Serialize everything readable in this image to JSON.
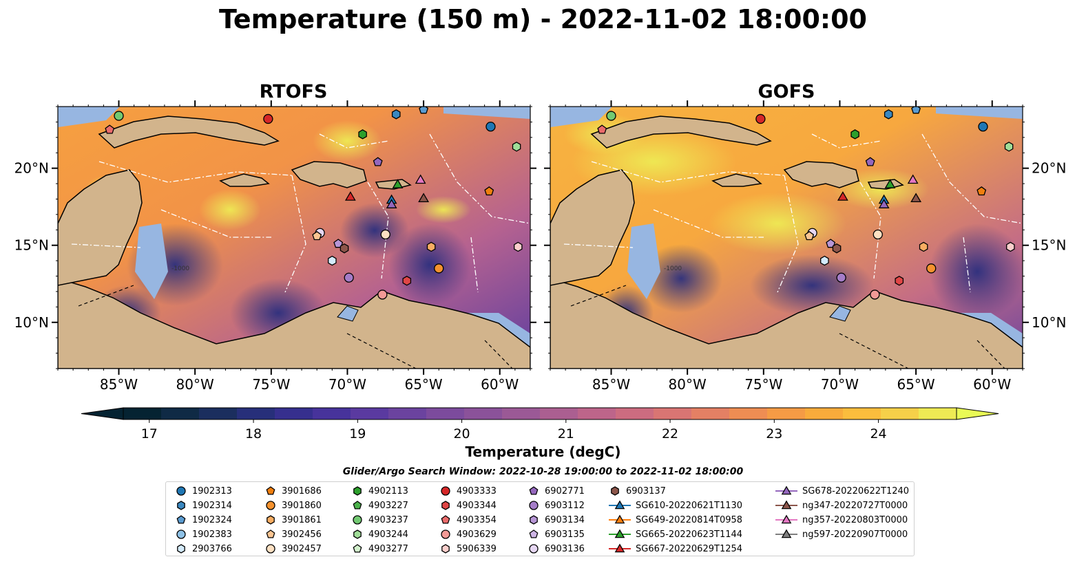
{
  "title": "Temperature (150 m) - 2022-11-02 18:00:00",
  "panels": [
    {
      "title": "RTOFS",
      "lat_labels_side": "left"
    },
    {
      "title": "GOFS",
      "lat_labels_side": "right"
    }
  ],
  "map": {
    "lon_range": [
      -89,
      -58
    ],
    "lat_range": [
      7,
      24
    ],
    "lon_ticks": [
      {
        "value": -85,
        "label": "85°W"
      },
      {
        "value": -80,
        "label": "80°W"
      },
      {
        "value": -75,
        "label": "75°W"
      },
      {
        "value": -70,
        "label": "70°W"
      },
      {
        "value": -65,
        "label": "65°W"
      },
      {
        "value": -60,
        "label": "60°W"
      }
    ],
    "lat_ticks": [
      {
        "value": 20,
        "label": "20°N"
      },
      {
        "value": 15,
        "label": "15°N"
      },
      {
        "value": 10,
        "label": "10°N"
      }
    ],
    "bathymetry_label": "-1000",
    "colors": {
      "land": "#d2b48c",
      "shelf": "#97b6e1",
      "coast": "#000000",
      "eez": "#ffffff"
    }
  },
  "colorbar": {
    "label": "Temperature (degC)",
    "ticks": [
      "17",
      "18",
      "19",
      "20",
      "21",
      "22",
      "23",
      "24"
    ],
    "min": 16.75,
    "max": 24.75,
    "extend": "both",
    "colors": [
      "#052332",
      "#0f2a45",
      "#1b2e5e",
      "#272f7a",
      "#362f8e",
      "#47339b",
      "#5a3aa0",
      "#6b439f",
      "#7c4b9d",
      "#8b529a",
      "#9b5996",
      "#ab5f91",
      "#bd658a",
      "#cc6c80",
      "#d97573",
      "#e48064",
      "#ee8d53",
      "#f59b45",
      "#f9ab3b",
      "#fbbd3d",
      "#f6d049",
      "#eeea54"
    ],
    "extend_low_color": "#052332",
    "extend_high_color": "#e9fa56"
  },
  "search_window": "Glider/Argo Search Window: 2022-10-28 19:00:00 to 2022-11-02 18:00:00",
  "legend": {
    "columns": [
      [
        {
          "label": "1902313",
          "marker": "circle",
          "color": "#1f77b4"
        },
        {
          "label": "1902314",
          "marker": "hexagon",
          "color": "#3a88c0"
        },
        {
          "label": "1902324",
          "marker": "pentagon",
          "color": "#5a9bd0"
        },
        {
          "label": "1902383",
          "marker": "circle",
          "color": "#8ec1e6"
        },
        {
          "label": "2903766",
          "marker": "hexagon",
          "color": "#d4ebfb"
        }
      ],
      [
        {
          "label": "3901686",
          "marker": "pentagon",
          "color": "#f07f0e"
        },
        {
          "label": "3901860",
          "marker": "circle",
          "color": "#f5922e"
        },
        {
          "label": "3901861",
          "marker": "hexagon",
          "color": "#f9ad62"
        },
        {
          "label": "3902456",
          "marker": "pentagon",
          "color": "#fbc592"
        },
        {
          "label": "3902457",
          "marker": "circle",
          "color": "#fde0c2"
        }
      ],
      [
        {
          "label": "4902113",
          "marker": "hexagon",
          "color": "#2ca02c"
        },
        {
          "label": "4903227",
          "marker": "pentagon",
          "color": "#4bb24b"
        },
        {
          "label": "4903237",
          "marker": "circle",
          "color": "#72c972"
        },
        {
          "label": "4903244",
          "marker": "hexagon",
          "color": "#a0dd98"
        },
        {
          "label": "4903277",
          "marker": "pentagon",
          "color": "#d3f2cd"
        }
      ],
      [
        {
          "label": "4903333",
          "marker": "circle",
          "color": "#d62728"
        },
        {
          "label": "4903344",
          "marker": "hexagon",
          "color": "#e04646"
        },
        {
          "label": "4903354",
          "marker": "pentagon",
          "color": "#ea6b6b"
        },
        {
          "label": "4903629",
          "marker": "circle",
          "color": "#f39a96"
        },
        {
          "label": "5906339",
          "marker": "hexagon",
          "color": "#fbcfcc"
        }
      ],
      [
        {
          "label": "6902771",
          "marker": "pentagon",
          "color": "#9467bd"
        },
        {
          "label": "6903112",
          "marker": "circle",
          "color": "#a57dc8"
        },
        {
          "label": "6903134",
          "marker": "hexagon",
          "color": "#b796d6"
        },
        {
          "label": "6903135",
          "marker": "pentagon",
          "color": "#cdb4e4"
        },
        {
          "label": "6903136",
          "marker": "circle",
          "color": "#e6d7f3"
        }
      ],
      [
        {
          "label": "6903137",
          "marker": "hexagon",
          "color": "#8c564b",
          "line": false
        },
        {
          "label": "SG610-20220621T1130",
          "marker": "triangle",
          "color": "#1f77b4",
          "line": true
        },
        {
          "label": "SG649-20220814T0958",
          "marker": "triangle",
          "color": "#ff7f0e",
          "line": true
        },
        {
          "label": "SG665-20220623T1144",
          "marker": "triangle",
          "color": "#2ca02c",
          "line": true
        },
        {
          "label": "SG667-20220629T1254",
          "marker": "triangle",
          "color": "#d62728",
          "line": true
        }
      ],
      [
        {
          "label": "SG678-20220622T1240",
          "marker": "triangle",
          "color": "#9467bd",
          "line": true
        },
        {
          "label": "ng347-20220727T0000",
          "marker": "triangle",
          "color": "#8c564b",
          "line": true
        },
        {
          "label": "ng357-20220803T0000",
          "marker": "triangle",
          "color": "#e377c2",
          "line": true
        },
        {
          "label": "ng597-20220907T0000",
          "marker": "triangle",
          "color": "#7f7f7f",
          "line": true
        }
      ]
    ]
  },
  "markers": [
    {
      "lon": -85.0,
      "lat": 23.4,
      "shape": "circle",
      "color": "#72c972"
    },
    {
      "lon": -85.6,
      "lat": 22.5,
      "shape": "pentagon",
      "color": "#ea6b6b"
    },
    {
      "lon": -75.2,
      "lat": 23.2,
      "shape": "circle",
      "color": "#d62728"
    },
    {
      "lon": -69.0,
      "lat": 22.2,
      "shape": "hexagon",
      "color": "#2ca02c"
    },
    {
      "lon": -66.8,
      "lat": 23.5,
      "shape": "hexagon",
      "color": "#3a88c0"
    },
    {
      "lon": -65.0,
      "lat": 23.8,
      "shape": "pentagon",
      "color": "#5a9bd0"
    },
    {
      "lon": -60.6,
      "lat": 22.7,
      "shape": "circle",
      "color": "#1f77b4"
    },
    {
      "lon": -58.9,
      "lat": 21.4,
      "shape": "hexagon",
      "color": "#a0dd98"
    },
    {
      "lon": -68.0,
      "lat": 20.4,
      "shape": "pentagon",
      "color": "#9467bd"
    },
    {
      "lon": -60.7,
      "lat": 18.5,
      "shape": "pentagon",
      "color": "#f07f0e"
    },
    {
      "lon": -66.7,
      "lat": 18.9,
      "shape": "triangle",
      "color": "#2ca02c"
    },
    {
      "lon": -65.2,
      "lat": 19.2,
      "shape": "triangle",
      "color": "#e377c2"
    },
    {
      "lon": -69.8,
      "lat": 18.1,
      "shape": "triangle",
      "color": "#d62728"
    },
    {
      "lon": -67.1,
      "lat": 17.9,
      "shape": "triangle",
      "color": "#1f77b4"
    },
    {
      "lon": -67.1,
      "lat": 17.6,
      "shape": "triangle",
      "color": "#9467bd"
    },
    {
      "lon": -65.0,
      "lat": 18.0,
      "shape": "triangle",
      "color": "#8c564b"
    },
    {
      "lon": -71.8,
      "lat": 15.8,
      "shape": "circle",
      "color": "#e6d7f3"
    },
    {
      "lon": -72.0,
      "lat": 15.6,
      "shape": "pentagon",
      "color": "#fbc592"
    },
    {
      "lon": -67.5,
      "lat": 15.7,
      "shape": "circle",
      "color": "#fde0c2"
    },
    {
      "lon": -70.6,
      "lat": 15.1,
      "shape": "pentagon",
      "color": "#b796d6"
    },
    {
      "lon": -70.2,
      "lat": 14.8,
      "shape": "hexagon",
      "color": "#8c564b"
    },
    {
      "lon": -71.0,
      "lat": 14.0,
      "shape": "hexagon",
      "color": "#d4ebfb"
    },
    {
      "lon": -58.8,
      "lat": 14.9,
      "shape": "hexagon",
      "color": "#fbcfcc"
    },
    {
      "lon": -64.5,
      "lat": 14.9,
      "shape": "hexagon",
      "color": "#f9ad62"
    },
    {
      "lon": -64.0,
      "lat": 13.5,
      "shape": "circle",
      "color": "#f5922e"
    },
    {
      "lon": -69.9,
      "lat": 12.9,
      "shape": "circle",
      "color": "#a57dc8"
    },
    {
      "lon": -66.1,
      "lat": 12.7,
      "shape": "hexagon",
      "color": "#e04646"
    },
    {
      "lon": -67.7,
      "lat": 11.8,
      "shape": "circle",
      "color": "#f39a96"
    }
  ]
}
